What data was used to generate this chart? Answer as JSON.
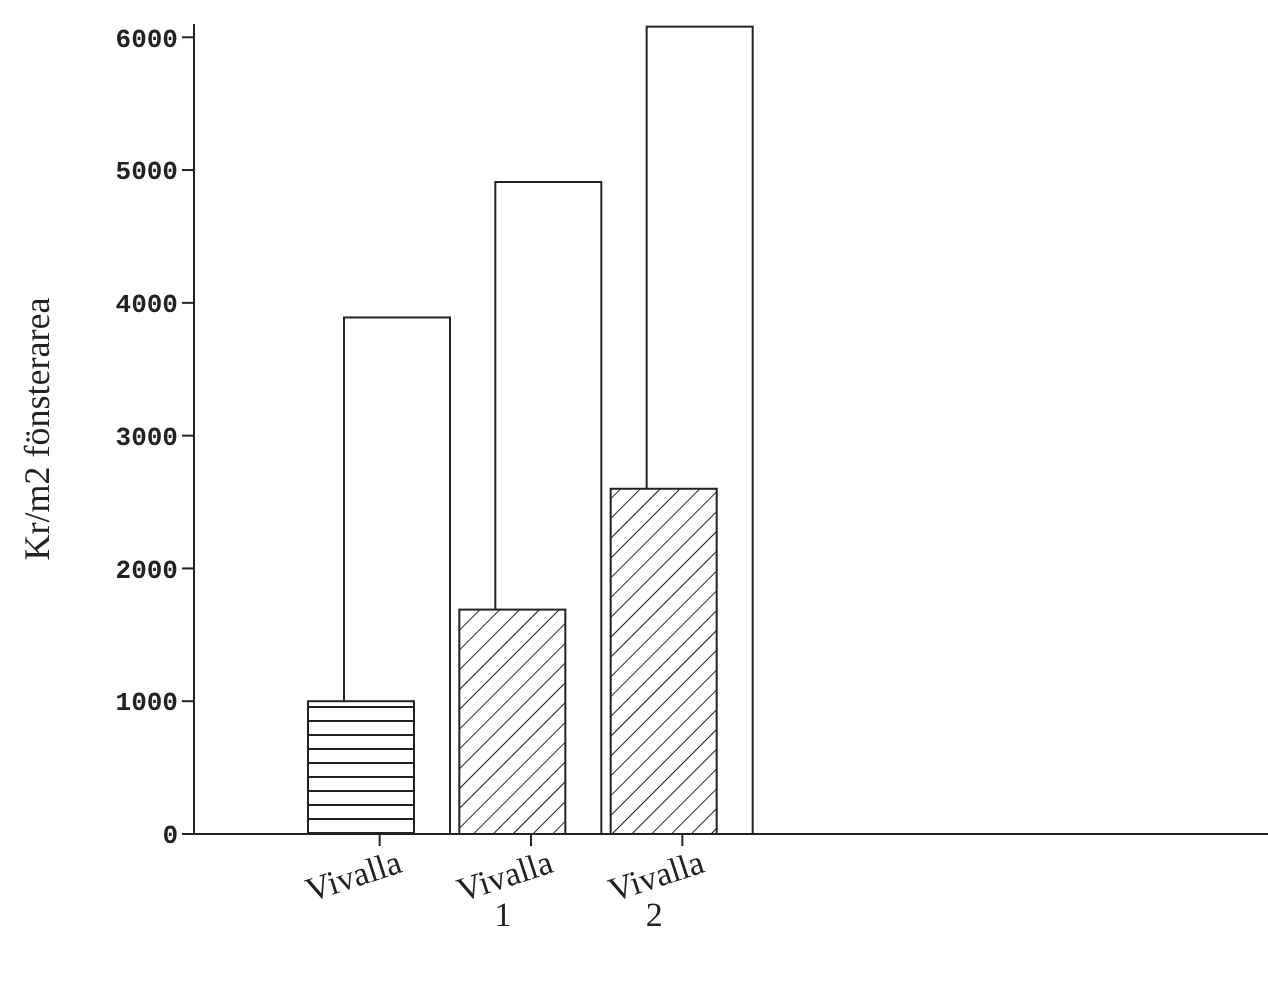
{
  "chart_data": {
    "type": "bar",
    "ylabel": "Kr/m2 fönsterarea",
    "categories": [
      "Vivalla",
      "Vivalla\n1",
      "Vivalla\n2"
    ],
    "series": [
      {
        "color": "#ffffff",
        "values": [
          3890,
          4910,
          6080
        ]
      },
      {
        "color": "#222222",
        "values": [
          1000,
          1690,
          2600
        ]
      }
    ],
    "ylim": [
      0,
      6100
    ],
    "yticks": [
      0,
      1000,
      2000,
      3000,
      4000,
      5000,
      6000
    ],
    "grid": false
  }
}
